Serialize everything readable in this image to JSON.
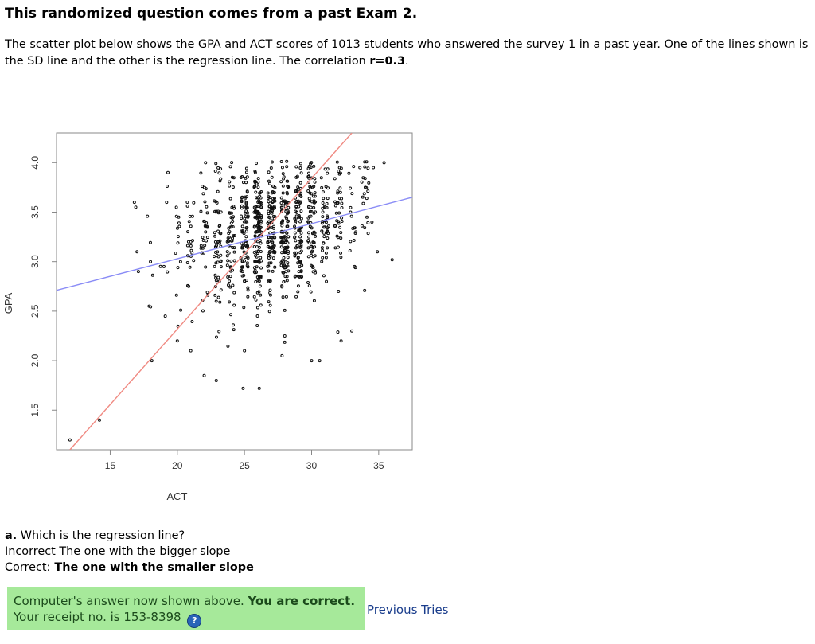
{
  "header": {
    "title": "This randomized question comes from a past Exam 2."
  },
  "intro": {
    "text_part1": "The scatter plot below shows the GPA and ACT scores of 1013 students who answered the survey 1 in a past year. One of the lines shown is the SD line and the other is the regression line. The correlation ",
    "text_bold": "r=0.3",
    "text_end": "."
  },
  "chart_data": {
    "type": "scatter",
    "xlabel": "ACT",
    "ylabel": "GPA",
    "xlim": [
      11,
      37.5
    ],
    "ylim": [
      1.1,
      4.3
    ],
    "x_ticks": [
      "15",
      "20",
      "25",
      "30",
      "35"
    ],
    "y_ticks": [
      "1.5",
      "2.0",
      "2.5",
      "3.0",
      "3.5",
      "4.0"
    ],
    "grid": false,
    "correlation": 0.3,
    "n_points": 1013,
    "lines": [
      {
        "color": "#f08a82",
        "x": [
          12,
          33
        ],
        "y": [
          1.1,
          4.3
        ]
      },
      {
        "color": "#8a8cf6",
        "x": [
          11,
          37.5
        ],
        "y": [
          2.71,
          3.65
        ]
      }
    ],
    "points": [
      [
        12,
        1.2
      ],
      [
        14.2,
        1.4
      ],
      [
        18.1,
        2.0
      ],
      [
        17.9,
        2.55
      ],
      [
        19.1,
        2.45
      ],
      [
        20,
        2.2
      ],
      [
        21,
        2.1
      ],
      [
        22,
        1.85
      ],
      [
        22.9,
        1.8
      ],
      [
        24.9,
        1.72
      ],
      [
        26.1,
        1.72
      ],
      [
        25,
        2.1
      ],
      [
        27.8,
        2.05
      ],
      [
        28,
        2.25
      ],
      [
        30,
        2.0
      ],
      [
        30.6,
        2.0
      ],
      [
        32.2,
        2.2
      ],
      [
        33,
        2.3
      ],
      [
        16.9,
        3.55
      ],
      [
        16.8,
        3.6
      ],
      [
        17.1,
        2.9
      ],
      [
        17,
        3.1
      ],
      [
        18,
        3.0
      ],
      [
        19,
        2.95
      ],
      [
        19.2,
        3.6
      ],
      [
        20.1,
        3.45
      ],
      [
        21,
        3.2
      ],
      [
        22.1,
        3.3
      ],
      [
        19.3,
        3.9
      ],
      [
        22.1,
        4.0
      ],
      [
        33.6,
        3.95
      ],
      [
        34.6,
        3.95
      ],
      [
        35.4,
        4.0
      ],
      [
        34,
        3.75
      ],
      [
        34.5,
        3.4
      ],
      [
        34.9,
        3.1
      ],
      [
        36,
        3.02
      ],
      [
        33.2,
        2.95
      ],
      [
        32,
        2.7
      ],
      [
        31.1,
        2.8
      ],
      [
        33.3,
        3.3
      ],
      [
        32.9,
        3.5
      ]
    ]
  },
  "question": {
    "label": "a.",
    "text": " Which is the regression line?",
    "incorrect_prefix": "Incorrect",
    "incorrect_text": " The one with the bigger slope",
    "correct_prefix": "Correct:",
    "correct_text": " The one with the smaller slope"
  },
  "status": {
    "message": "Computer's answer now shown above. ",
    "message_bold": "You are correct.",
    "receipt": "Your receipt no. is 153-8398",
    "help_icon": "question-mark-icon",
    "help_glyph": "?"
  },
  "links": {
    "previous_tries": "Previous Tries"
  }
}
